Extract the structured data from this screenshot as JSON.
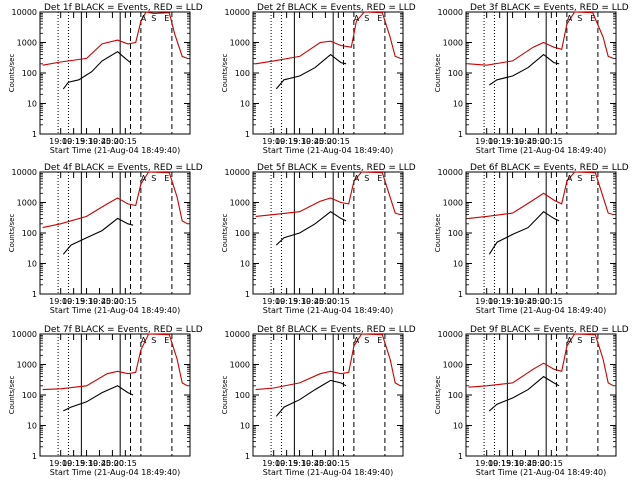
{
  "chart_data": [
    {
      "type": "line",
      "title": "Det 1f BLACK = Events, RED = LLD",
      "xlabel": "Start Time (21-Aug-04 18:49:40)",
      "ylabel": "Counts/sec",
      "yscale": "log",
      "ylim": [
        1,
        10000
      ],
      "xlim_hours": [
        17.6,
        20.5
      ],
      "x_tick_labels": [
        "19:00",
        "19:15",
        "19:30",
        "19:45",
        "20:00",
        "20:15"
      ],
      "y_tick_labels": [
        "1",
        "10",
        "100",
        "1000",
        "10000"
      ],
      "flag_labels": [
        "A",
        "S",
        "E"
      ],
      "series": [
        {
          "color": "#000000",
          "points": [
            [
              18.05,
              30
            ],
            [
              18.15,
              50
            ],
            [
              18.35,
              60
            ],
            [
              18.6,
              110
            ],
            [
              18.8,
              250
            ],
            [
              19.1,
              500
            ],
            [
              19.25,
              300
            ],
            [
              19.35,
              220
            ]
          ]
        },
        {
          "color": "#cc0000",
          "points": [
            [
              17.65,
              180
            ],
            [
              18.0,
              230
            ],
            [
              18.5,
              300
            ],
            [
              18.8,
              900
            ],
            [
              19.1,
              1200
            ],
            [
              19.3,
              900
            ],
            [
              19.45,
              1000
            ],
            [
              19.55,
              5000
            ],
            [
              19.65,
              10000
            ],
            [
              19.8,
              9000
            ],
            [
              20.1,
              9500
            ],
            [
              20.2,
              2000
            ],
            [
              20.35,
              350
            ],
            [
              20.45,
              300
            ]
          ]
        }
      ]
    },
    {
      "type": "line",
      "title": "Det 2f BLACK = Events, RED = LLD",
      "xlabel": "Start Time (21-Aug-04 18:49:40)",
      "ylabel": "Counts/sec",
      "yscale": "log",
      "ylim": [
        1,
        10000
      ],
      "xlim_hours": [
        17.6,
        20.5
      ],
      "x_tick_labels": [
        "19:00",
        "19:15",
        "19:30",
        "19:45",
        "20:00",
        "20:15"
      ],
      "y_tick_labels": [
        "1",
        "10",
        "100",
        "1000",
        "10000"
      ],
      "flag_labels": [
        "A",
        "S",
        "E"
      ],
      "series": [
        {
          "color": "#000000",
          "points": [
            [
              18.05,
              30
            ],
            [
              18.2,
              60
            ],
            [
              18.5,
              80
            ],
            [
              18.8,
              150
            ],
            [
              19.1,
              400
            ],
            [
              19.3,
              220
            ],
            [
              19.4,
              200
            ]
          ]
        },
        {
          "color": "#cc0000",
          "points": [
            [
              17.65,
              200
            ],
            [
              18.0,
              250
            ],
            [
              18.5,
              350
            ],
            [
              18.9,
              1000
            ],
            [
              19.1,
              1100
            ],
            [
              19.3,
              800
            ],
            [
              19.5,
              700
            ],
            [
              19.6,
              5000
            ],
            [
              19.75,
              10000
            ],
            [
              20.1,
              9500
            ],
            [
              20.25,
              1500
            ],
            [
              20.35,
              350
            ],
            [
              20.45,
              300
            ]
          ]
        }
      ]
    },
    {
      "type": "line",
      "title": "Det 3f BLACK = Events, RED = LLD",
      "xlabel": "Start Time (21-Aug-04 18:49:40)",
      "ylabel": "Counts/sec",
      "yscale": "log",
      "ylim": [
        1,
        10000
      ],
      "xlim_hours": [
        17.6,
        20.5
      ],
      "x_tick_labels": [
        "19:00",
        "19:15",
        "19:30",
        "19:45",
        "20:00",
        "20:15"
      ],
      "y_tick_labels": [
        "1",
        "10",
        "100",
        "1000",
        "10000"
      ],
      "flag_labels": [
        "A",
        "S",
        "E"
      ],
      "series": [
        {
          "color": "#000000",
          "points": [
            [
              18.05,
              40
            ],
            [
              18.2,
              60
            ],
            [
              18.5,
              80
            ],
            [
              18.8,
              150
            ],
            [
              19.1,
              400
            ],
            [
              19.3,
              220
            ],
            [
              19.4,
              200
            ]
          ]
        },
        {
          "color": "#cc0000",
          "points": [
            [
              17.65,
              200
            ],
            [
              18.0,
              180
            ],
            [
              18.5,
              250
            ],
            [
              18.9,
              700
            ],
            [
              19.1,
              1000
            ],
            [
              19.3,
              700
            ],
            [
              19.45,
              600
            ],
            [
              19.55,
              4000
            ],
            [
              19.7,
              10000
            ],
            [
              20.05,
              9500
            ],
            [
              20.25,
              1500
            ],
            [
              20.35,
              350
            ],
            [
              20.45,
              300
            ]
          ]
        }
      ]
    },
    {
      "type": "line",
      "title": "Det 4f BLACK = Events, RED = LLD",
      "xlabel": "Start Time (21-Aug-04 18:49:40)",
      "ylabel": "Counts/sec",
      "yscale": "log",
      "ylim": [
        1,
        10000
      ],
      "xlim_hours": [
        17.6,
        20.5
      ],
      "x_tick_labels": [
        "19:00",
        "19:15",
        "19:30",
        "19:45",
        "20:00",
        "20:15"
      ],
      "y_tick_labels": [
        "1",
        "10",
        "100",
        "1000",
        "10000"
      ],
      "flag_labels": [
        "A",
        "S",
        "E"
      ],
      "series": [
        {
          "color": "#000000",
          "points": [
            [
              18.05,
              20
            ],
            [
              18.2,
              40
            ],
            [
              18.5,
              70
            ],
            [
              18.8,
              120
            ],
            [
              19.1,
              300
            ],
            [
              19.3,
              200
            ],
            [
              19.4,
              180
            ]
          ]
        },
        {
          "color": "#cc0000",
          "points": [
            [
              17.65,
              150
            ],
            [
              18.0,
              200
            ],
            [
              18.5,
              350
            ],
            [
              18.9,
              900
            ],
            [
              19.1,
              1400
            ],
            [
              19.3,
              900
            ],
            [
              19.45,
              800
            ],
            [
              19.55,
              4000
            ],
            [
              19.7,
              10000
            ],
            [
              20.1,
              9500
            ],
            [
              20.25,
              1500
            ],
            [
              20.35,
              250
            ],
            [
              20.45,
              200
            ]
          ]
        }
      ]
    },
    {
      "type": "line",
      "title": "Det 5f BLACK = Events, RED = LLD",
      "xlabel": "Start Time (21-Aug-04 18:49:40)",
      "ylabel": "Counts/sec",
      "yscale": "log",
      "ylim": [
        1,
        10000
      ],
      "xlim_hours": [
        17.6,
        20.5
      ],
      "x_tick_labels": [
        "19:00",
        "19:15",
        "19:30",
        "19:45",
        "20:00",
        "20:15"
      ],
      "y_tick_labels": [
        "1",
        "10",
        "100",
        "1000",
        "10000"
      ],
      "flag_labels": [
        "A",
        "S",
        "E"
      ],
      "series": [
        {
          "color": "#000000",
          "points": [
            [
              18.05,
              40
            ],
            [
              18.2,
              70
            ],
            [
              18.5,
              100
            ],
            [
              18.8,
              200
            ],
            [
              19.1,
              500
            ],
            [
              19.3,
              300
            ],
            [
              19.4,
              250
            ]
          ]
        },
        {
          "color": "#cc0000",
          "points": [
            [
              17.65,
              350
            ],
            [
              18.0,
              400
            ],
            [
              18.5,
              500
            ],
            [
              18.9,
              1100
            ],
            [
              19.1,
              1400
            ],
            [
              19.3,
              1000
            ],
            [
              19.45,
              900
            ],
            [
              19.55,
              5000
            ],
            [
              19.7,
              10000
            ],
            [
              20.1,
              9500
            ],
            [
              20.25,
              1500
            ],
            [
              20.35,
              450
            ],
            [
              20.45,
              400
            ]
          ]
        }
      ]
    },
    {
      "type": "line",
      "title": "Det 6f BLACK = Events, RED = LLD",
      "xlabel": "Start Time (21-Aug-04 18:49:40)",
      "ylabel": "Counts/sec",
      "yscale": "log",
      "ylim": [
        1,
        10000
      ],
      "xlim_hours": [
        17.6,
        20.5
      ],
      "x_tick_labels": [
        "19:00",
        "19:15",
        "19:30",
        "19:45",
        "20:00",
        "20:15"
      ],
      "y_tick_labels": [
        "1",
        "10",
        "100",
        "1000",
        "10000"
      ],
      "flag_labels": [
        "A",
        "S",
        "E"
      ],
      "series": [
        {
          "color": "#000000",
          "points": [
            [
              18.05,
              20
            ],
            [
              18.2,
              50
            ],
            [
              18.5,
              90
            ],
            [
              18.8,
              150
            ],
            [
              19.1,
              500
            ],
            [
              19.3,
              300
            ],
            [
              19.4,
              250
            ]
          ]
        },
        {
          "color": "#cc0000",
          "points": [
            [
              17.65,
              300
            ],
            [
              18.0,
              350
            ],
            [
              18.5,
              450
            ],
            [
              18.9,
              1200
            ],
            [
              19.1,
              2000
            ],
            [
              19.3,
              1200
            ],
            [
              19.45,
              900
            ],
            [
              19.55,
              5000
            ],
            [
              19.7,
              10000
            ],
            [
              20.1,
              9500
            ],
            [
              20.25,
              1500
            ],
            [
              20.35,
              450
            ],
            [
              20.45,
              400
            ]
          ]
        }
      ]
    },
    {
      "type": "line",
      "title": "Det 7f BLACK = Events, RED = LLD",
      "xlabel": "Start Time (21-Aug-04 18:49:40)",
      "ylabel": "Counts/sec",
      "yscale": "log",
      "ylim": [
        1,
        10000
      ],
      "xlim_hours": [
        17.6,
        20.5
      ],
      "x_tick_labels": [
        "19:00",
        "19:15",
        "19:30",
        "19:45",
        "20:00",
        "20:15"
      ],
      "y_tick_labels": [
        "1",
        "10",
        "100",
        "1000",
        "10000"
      ],
      "flag_labels": [
        "A",
        "S",
        "E"
      ],
      "series": [
        {
          "color": "#000000",
          "points": [
            [
              18.05,
              30
            ],
            [
              18.2,
              40
            ],
            [
              18.5,
              60
            ],
            [
              18.8,
              120
            ],
            [
              19.1,
              200
            ],
            [
              19.3,
              120
            ],
            [
              19.4,
              100
            ]
          ]
        },
        {
          "color": "#cc0000",
          "points": [
            [
              17.65,
              150
            ],
            [
              18.0,
              160
            ],
            [
              18.5,
              200
            ],
            [
              18.9,
              500
            ],
            [
              19.1,
              600
            ],
            [
              19.3,
              500
            ],
            [
              19.45,
              550
            ],
            [
              19.55,
              3000
            ],
            [
              19.7,
              10000
            ],
            [
              20.1,
              9500
            ],
            [
              20.25,
              1500
            ],
            [
              20.35,
              250
            ],
            [
              20.45,
              200
            ]
          ]
        }
      ]
    },
    {
      "type": "line",
      "title": "Det 8f BLACK = Events, RED = LLD",
      "xlabel": "Start Time (21-Aug-04 18:49:40)",
      "ylabel": "Counts/sec",
      "yscale": "log",
      "ylim": [
        1,
        10000
      ],
      "xlim_hours": [
        17.6,
        20.5
      ],
      "x_tick_labels": [
        "19:00",
        "19:15",
        "19:30",
        "19:45",
        "20:00",
        "20:15"
      ],
      "y_tick_labels": [
        "1",
        "10",
        "100",
        "1000",
        "10000"
      ],
      "flag_labels": [
        "A",
        "S",
        "E"
      ],
      "series": [
        {
          "color": "#000000",
          "points": [
            [
              18.05,
              20
            ],
            [
              18.2,
              40
            ],
            [
              18.5,
              70
            ],
            [
              18.8,
              150
            ],
            [
              19.1,
              300
            ],
            [
              19.3,
              250
            ],
            [
              19.4,
              200
            ]
          ]
        },
        {
          "color": "#cc0000",
          "points": [
            [
              17.65,
              150
            ],
            [
              18.0,
              170
            ],
            [
              18.5,
              250
            ],
            [
              18.9,
              500
            ],
            [
              19.1,
              600
            ],
            [
              19.3,
              500
            ],
            [
              19.45,
              550
            ],
            [
              19.55,
              4000
            ],
            [
              19.7,
              10000
            ],
            [
              20.1,
              9500
            ],
            [
              20.25,
              1500
            ],
            [
              20.35,
              250
            ],
            [
              20.45,
              200
            ]
          ]
        }
      ]
    },
    {
      "type": "line",
      "title": "Det 9f BLACK = Events, RED = LLD",
      "xlabel": "Start Time (21-Aug-04 18:49:40)",
      "ylabel": "Counts/sec",
      "yscale": "log",
      "ylim": [
        1,
        10000
      ],
      "xlim_hours": [
        17.6,
        20.5
      ],
      "x_tick_labels": [
        "19:00",
        "19:15",
        "19:30",
        "19:45",
        "20:00",
        "20:15"
      ],
      "y_tick_labels": [
        "1",
        "10",
        "100",
        "1000",
        "10000"
      ],
      "flag_labels": [
        "A",
        "S",
        "E"
      ],
      "series": [
        {
          "color": "#000000",
          "points": [
            [
              18.05,
              30
            ],
            [
              18.2,
              50
            ],
            [
              18.5,
              80
            ],
            [
              18.8,
              150
            ],
            [
              19.1,
              400
            ],
            [
              19.3,
              250
            ],
            [
              19.4,
              200
            ]
          ]
        },
        {
          "color": "#cc0000",
          "points": [
            [
              17.65,
              180
            ],
            [
              18.0,
              200
            ],
            [
              18.5,
              250
            ],
            [
              18.9,
              700
            ],
            [
              19.1,
              1100
            ],
            [
              19.3,
              700
            ],
            [
              19.45,
              600
            ],
            [
              19.55,
              4000
            ],
            [
              19.7,
              10000
            ],
            [
              20.1,
              9500
            ],
            [
              20.25,
              1500
            ],
            [
              20.35,
              250
            ],
            [
              20.45,
              200
            ]
          ]
        }
      ]
    }
  ]
}
